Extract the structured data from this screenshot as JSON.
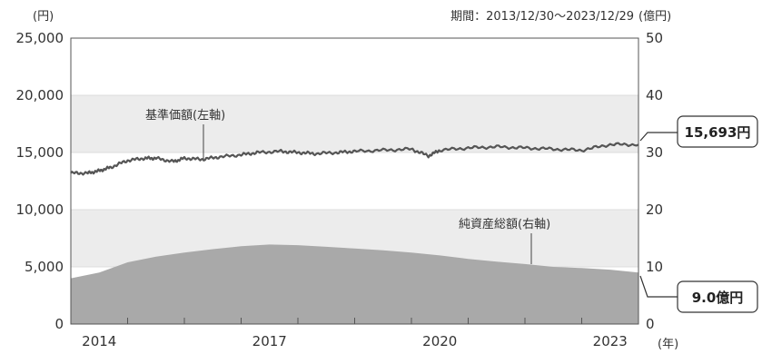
{
  "chart_data": {
    "type": "line",
    "period_label": "期間：2013/12/30～2023/12/29",
    "left_unit": "(円)",
    "right_unit": "(億円)",
    "x_unit": "(年)",
    "x_ticks": [
      2014,
      2017,
      2020,
      2023
    ],
    "x_range": [
      2014.0,
      2024.0
    ],
    "left_axis": {
      "range": [
        0,
        25000
      ],
      "ticks": [
        "25,000",
        "20,000",
        "15,000",
        "10,000",
        "5,000",
        "0"
      ],
      "tick_values": [
        25000,
        20000,
        15000,
        10000,
        5000,
        0
      ]
    },
    "right_axis": {
      "range": [
        0,
        50
      ],
      "ticks": [
        "50",
        "40",
        "30",
        "20",
        "10",
        "0"
      ],
      "tick_values": [
        50,
        40,
        30,
        20,
        10,
        0
      ]
    },
    "grid_bands": true,
    "series": [
      {
        "name": "基準価額(左軸)",
        "axis": "left",
        "kind": "line",
        "color": "#555555",
        "x": [
          2014.0,
          2014.3,
          2014.5,
          2014.7,
          2015.0,
          2015.3,
          2015.5,
          2015.8,
          2016.0,
          2016.3,
          2016.6,
          2017.0,
          2017.3,
          2017.7,
          2018.0,
          2018.3,
          2018.7,
          2019.0,
          2019.5,
          2020.0,
          2020.3,
          2020.5,
          2021.0,
          2021.5,
          2022.0,
          2022.5,
          2023.0,
          2023.5,
          2024.0
        ],
        "y": [
          13200,
          13200,
          13400,
          13700,
          14300,
          14500,
          14500,
          14200,
          14500,
          14400,
          14600,
          14800,
          15000,
          15100,
          15000,
          14900,
          15000,
          15100,
          15200,
          15300,
          14700,
          15200,
          15400,
          15500,
          15400,
          15300,
          15200,
          15700,
          15693
        ]
      },
      {
        "name": "純資産総額(右軸)",
        "axis": "right",
        "kind": "area",
        "color": "#a9a9a9",
        "x": [
          2014.0,
          2014.5,
          2015.0,
          2015.5,
          2016.0,
          2016.5,
          2017.0,
          2017.5,
          2018.0,
          2018.5,
          2019.0,
          2019.5,
          2020.0,
          2020.5,
          2021.0,
          2021.5,
          2022.0,
          2022.5,
          2023.0,
          2023.5,
          2024.0
        ],
        "y": [
          8.0,
          9.0,
          10.8,
          11.8,
          12.5,
          13.1,
          13.6,
          13.9,
          13.8,
          13.5,
          13.2,
          12.9,
          12.5,
          12.0,
          11.4,
          10.9,
          10.5,
          10.0,
          9.8,
          9.5,
          9.0
        ]
      }
    ],
    "annotations": [
      {
        "text": "基準価額(左軸)",
        "series": 0
      },
      {
        "text": "純資産総額(右軸)",
        "series": 1
      }
    ],
    "callouts": [
      {
        "text": "15,693円",
        "value": 15693,
        "axis": "left"
      },
      {
        "text": "9.0億円",
        "value": 9.0,
        "axis": "right"
      }
    ]
  }
}
